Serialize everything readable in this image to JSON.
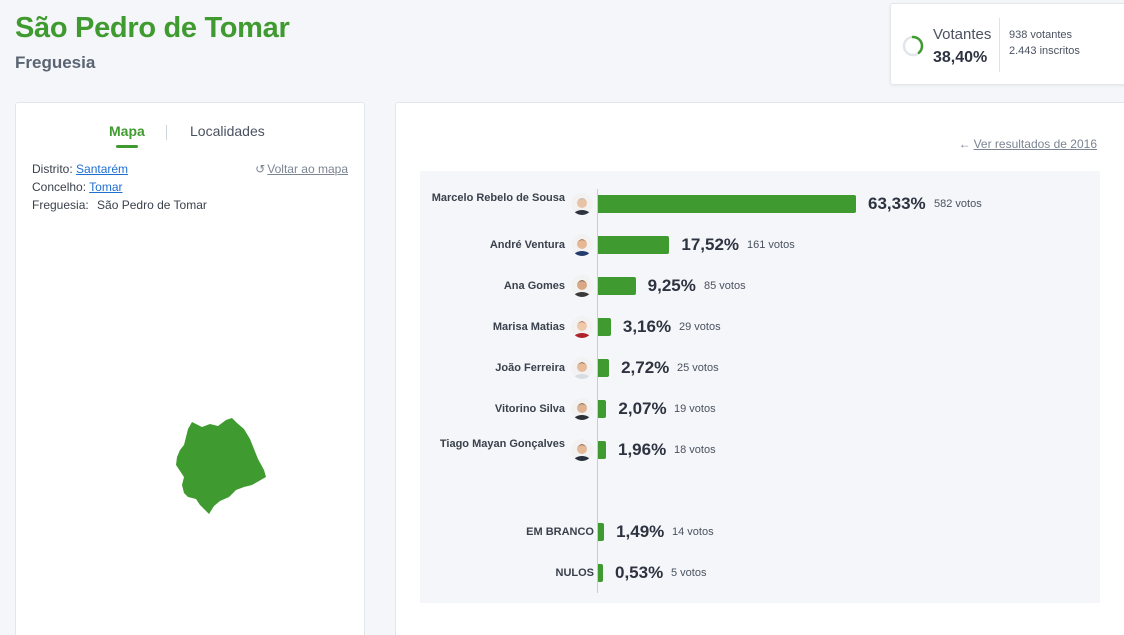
{
  "header": {
    "title": "São Pedro de Tomar",
    "subtitle": "Freguesia"
  },
  "turnout": {
    "label": "Votantes",
    "percent": "38,40%",
    "percent_value": 38.4,
    "voters": "938 votantes",
    "registered": "2.443 inscritos"
  },
  "left_panel": {
    "tabs": [
      {
        "label": "Mapa",
        "active": true
      },
      {
        "label": "Localidades",
        "active": false
      }
    ],
    "district_label": "Distrito:",
    "district_value": "Santarém",
    "county_label": "Concelho:",
    "county_value": "Tomar",
    "parish_label": "Freguesia:",
    "parish_value": "São Pedro de Tomar",
    "back_link": "Voltar ao mapa",
    "map_color": "#3f9b2f"
  },
  "results": {
    "prev_link": "Ver resultados de 2016",
    "bar_color": "#3f9b2f",
    "rows": [
      {
        "name": "Marcelo Rebelo de Sousa",
        "percent": "63,33%",
        "value": 63.33,
        "votes": "582 votos",
        "photo": true
      },
      {
        "name": "André Ventura",
        "percent": "17,52%",
        "value": 17.52,
        "votes": "161 votos",
        "photo": true
      },
      {
        "name": "Ana Gomes",
        "percent": "9,25%",
        "value": 9.25,
        "votes": "85 votos",
        "photo": true
      },
      {
        "name": "Marisa Matias",
        "percent": "3,16%",
        "value": 3.16,
        "votes": "29 votos",
        "photo": true
      },
      {
        "name": "João Ferreira",
        "percent": "2,72%",
        "value": 2.72,
        "votes": "25 votos",
        "photo": true
      },
      {
        "name": "Vitorino Silva",
        "percent": "2,07%",
        "value": 2.07,
        "votes": "19 votos",
        "photo": true
      },
      {
        "name": "Tiago Mayan Gonçalves",
        "percent": "1,96%",
        "value": 1.96,
        "votes": "18 votos",
        "photo": true
      },
      {
        "name": "EM BRANCO",
        "percent": "1,49%",
        "value": 1.49,
        "votes": "14 votos",
        "photo": false
      },
      {
        "name": "NULOS",
        "percent": "0,53%",
        "value": 0.53,
        "votes": "5 votos",
        "photo": false
      }
    ]
  }
}
